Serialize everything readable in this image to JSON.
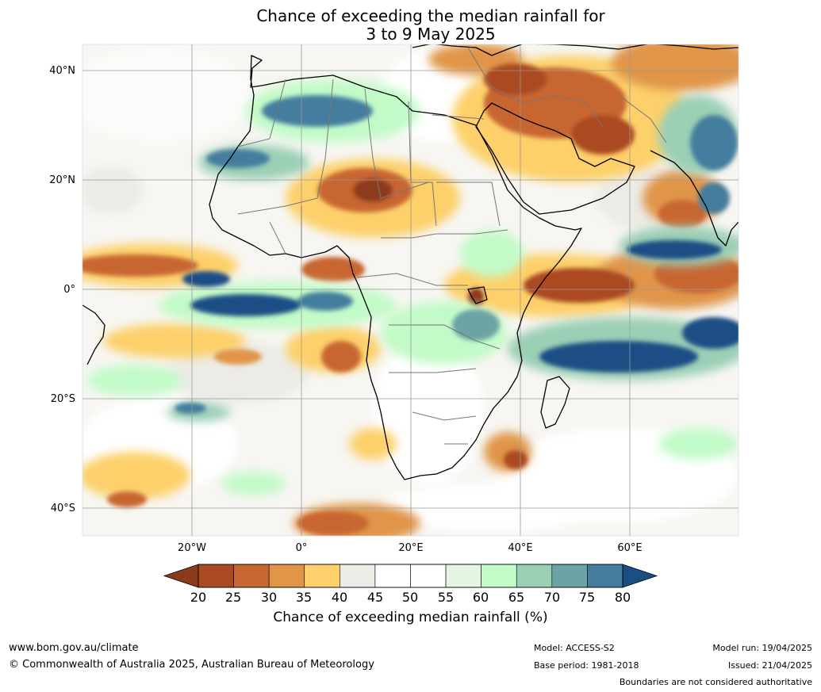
{
  "title_line1": "Chance of exceeding the median rainfall for",
  "title_line2": "3 to 9 May 2025",
  "lat_labels": [
    "40°N",
    "20°N",
    "0°",
    "20°S",
    "40°S"
  ],
  "lon_labels": [
    "20°W",
    "0°",
    "20°E",
    "40°E",
    "60°E"
  ],
  "colorbar": {
    "ticks": [
      "20",
      "25",
      "30",
      "35",
      "40",
      "45",
      "50",
      "55",
      "60",
      "65",
      "70",
      "75",
      "80"
    ],
    "colors": [
      "#8c3a1c",
      "#aa4a22",
      "#c86632",
      "#e09548",
      "#fdd06b",
      "#ecebe6",
      "#ffffff",
      "#ffffff",
      "#e4f5e4",
      "#c2fbc8",
      "#9bcfb6",
      "#6ca3a4",
      "#457d9e",
      "#1b4e85"
    ],
    "label": "Chance of exceeding median rainfall (%)"
  },
  "footer": {
    "website": "www.bom.gov.au/climate",
    "copyright": "© Commonwealth of Australia 2025, Australian Bureau of Meteorology",
    "model": "Model: ACCESS-S2",
    "base_period": "Base period: 1981-2018",
    "model_run": "Model run: 19/04/2025",
    "issued": "Issued: 21/04/2025",
    "disclaimer": "Boundaries are not considered authoritative"
  }
}
